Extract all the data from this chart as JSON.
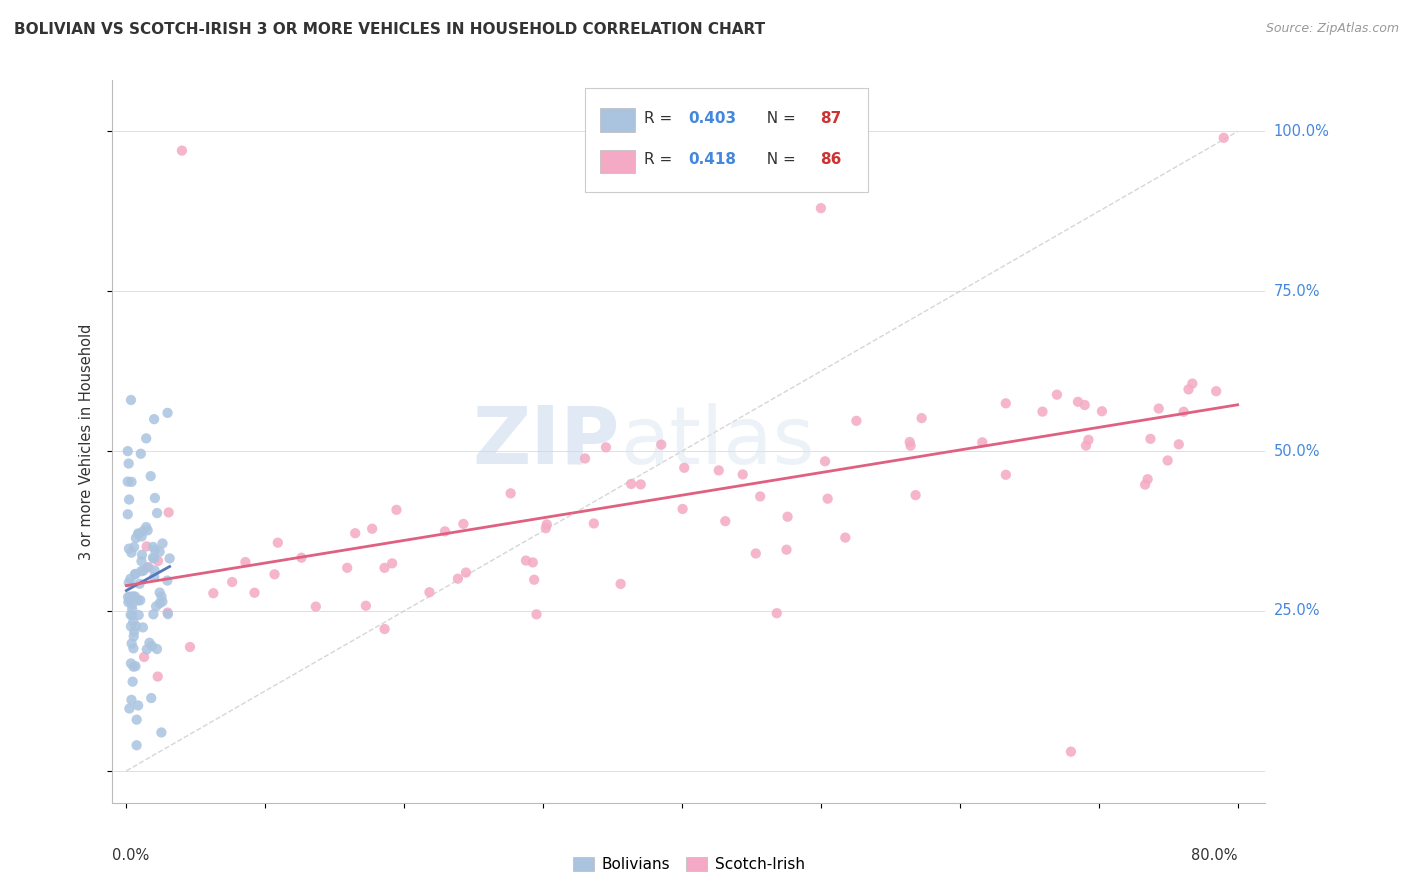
{
  "title": "BOLIVIAN VS SCOTCH-IRISH 3 OR MORE VEHICLES IN HOUSEHOLD CORRELATION CHART",
  "source": "Source: ZipAtlas.com",
  "ylabel": "3 or more Vehicles in Household",
  "color_bolivian": "#aac4e0",
  "color_scotch": "#f4aac4",
  "color_bolivian_line": "#5577bb",
  "color_scotch_line": "#e06080",
  "color_diagonal": "#cccccc",
  "watermark_zip": "ZIP",
  "watermark_atlas": "atlas",
  "r1": "0.403",
  "n1": "87",
  "r2": "0.418",
  "n2": "86"
}
